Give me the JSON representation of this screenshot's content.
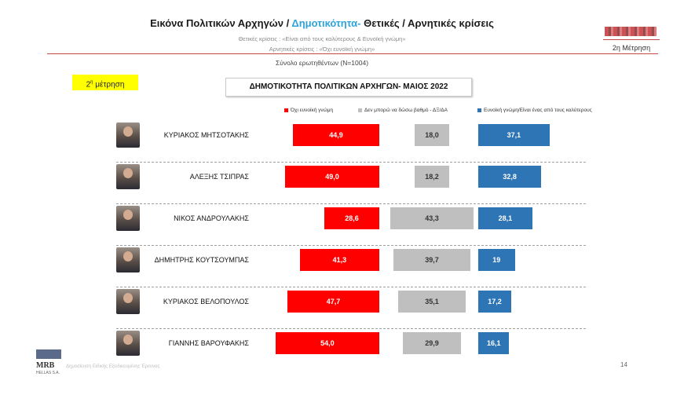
{
  "header": {
    "title_part1": "Εικόνα Πολιτικών Αρχηγών  / ",
    "title_accent": "Δημοτικότητα-",
    "title_part2": " Θετικές / Αρνητικές κρίσεις",
    "subtitle_positive": "Θετικές κρίσεις : «Είναι από τους καλύτερους &  Ευνοϊκή γνώμη»",
    "subtitle_negative": "Αρνητικές κρίσεις : «Όχι ευνοϊκή γνώμη»",
    "sample": "Σύνολο ερωτηθέντων (N=1004)",
    "measurement_label": "2η Μέτρηση",
    "accent_color": "#2ea3d8"
  },
  "measurement_tag": {
    "base": "2",
    "sup": "η",
    "rest": " μέτρηση"
  },
  "footer": {
    "mrb_logo": "MRB",
    "mrb_sub": "HELLAS S.A.",
    "footnote": "Δημοσίευση Ειδικής Εξειδικευμένης Έρευνας",
    "page_number": "14"
  },
  "chart_data": {
    "type": "bar",
    "subtype": "diverging-horizontal",
    "title": "ΔΗΜΟΤΙΚΟΤΗΤΑ ΠΟΛΙΤΙΚΩΝ ΑΡΧΗΓΩΝ- ΜΑΙΟΣ 2022",
    "categories": [
      "ΚΥΡΙΑΚΟΣ ΜΗΤΣΟΤΑΚΗΣ",
      "ΑΛΕΞΗΣ ΤΣΙΠΡΑΣ",
      "ΝΙΚΟΣ ΑΝΔΡΟΥΛΑΚΗΣ",
      "ΔΗΜΗΤΡΗΣ ΚΟΥΤΣΟΥΜΠΑΣ",
      "ΚΥΡΙΑΚΟΣ ΒΕΛΟΠΟΥΛΟΣ",
      "ΓΙΑΝΝΗΣ ΒΑΡΟΥΦΑΚΗΣ"
    ],
    "series": [
      {
        "name": "Όχι ευνοϊκή γνώμη",
        "color": "#ff0000",
        "values": [
          44.9,
          49.0,
          28.6,
          41.3,
          47.7,
          54.0
        ],
        "labels": [
          "44,9",
          "49,0",
          "28,6",
          "41,3",
          "47,7",
          "54,0"
        ]
      },
      {
        "name": "Δεν μπορώ να δώσω βαθμό - ΔΞ/ΔΑ",
        "color": "#bfbfbf",
        "values": [
          18.0,
          18.2,
          43.3,
          39.7,
          35.1,
          29.9
        ],
        "labels": [
          "18,0",
          "18,2",
          "43,3",
          "39,7",
          "35,1",
          "29,9"
        ]
      },
      {
        "name": "Ευνοϊκή γνώμη/Είναι ένας από τους καλύτερους",
        "color": "#2e75b6",
        "values": [
          37.1,
          32.8,
          28.1,
          19,
          17.2,
          16.1
        ],
        "labels": [
          "37,1",
          "32,8",
          "28,1",
          "19",
          "17,2",
          "16,1"
        ]
      }
    ],
    "legend_position": "top",
    "grid": false
  }
}
